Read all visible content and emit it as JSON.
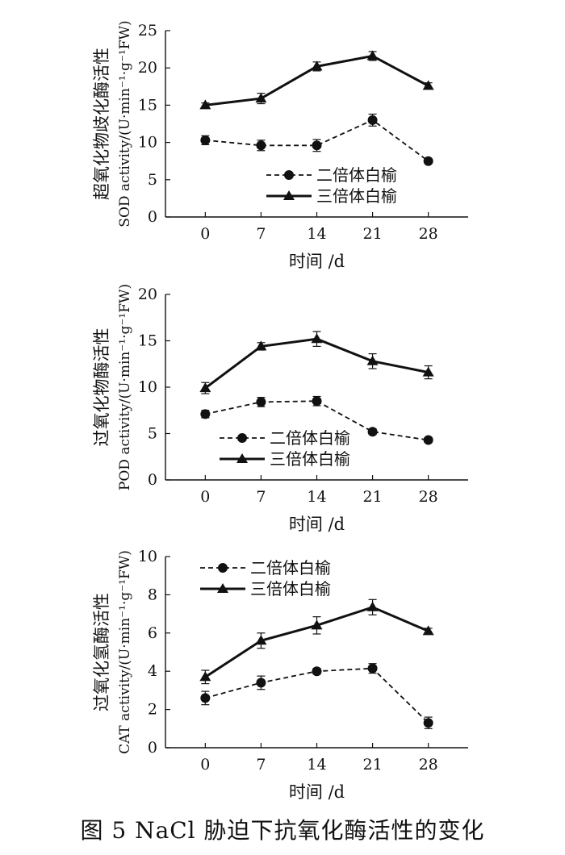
{
  "caption": "图 5   NaCl 胁迫下抗氧化酶活性的变化",
  "chart_data": [
    {
      "type": "line",
      "xlabel": "时间 /d",
      "ylabel_cn": "超氧化物歧化酶活性",
      "ylabel_en": "SOD activity/(U·min⁻¹·g⁻¹FW)",
      "x": [
        0,
        7,
        14,
        21,
        28
      ],
      "ylim": [
        0,
        25
      ],
      "yticks": [
        0,
        5,
        10,
        15,
        20,
        25
      ],
      "legend_position": "center-right",
      "series": [
        {
          "name": "二倍体白榆",
          "marker": "circle",
          "line": "dashed",
          "values": [
            10.3,
            9.6,
            9.6,
            13.0,
            7.5
          ],
          "errors": [
            0.6,
            0.7,
            0.8,
            0.8,
            0.3
          ]
        },
        {
          "name": "三倍体白榆",
          "marker": "triangle",
          "line": "solid",
          "values": [
            15.0,
            15.9,
            20.2,
            21.6,
            17.6
          ],
          "errors": [
            0.3,
            0.7,
            0.6,
            0.6,
            0.4
          ]
        }
      ]
    },
    {
      "type": "line",
      "xlabel": "时间 /d",
      "ylabel_cn": "过氧化物酶活性",
      "ylabel_en": "POD activity/(U·min⁻¹·g⁻¹FW)",
      "x": [
        0,
        7,
        14,
        21,
        28
      ],
      "ylim": [
        0,
        20
      ],
      "yticks": [
        0,
        5,
        10,
        15,
        20
      ],
      "legend_position": "bottom-center",
      "series": [
        {
          "name": "二倍体白榆",
          "marker": "circle",
          "line": "dashed",
          "values": [
            7.1,
            8.4,
            8.5,
            5.2,
            4.3
          ],
          "errors": [
            0.4,
            0.5,
            0.5,
            0.3,
            0.2
          ]
        },
        {
          "name": "三倍体白榆",
          "marker": "triangle",
          "line": "solid",
          "values": [
            9.9,
            14.4,
            15.2,
            12.8,
            11.6
          ],
          "errors": [
            0.6,
            0.4,
            0.8,
            0.8,
            0.7
          ]
        }
      ]
    },
    {
      "type": "line",
      "xlabel": "时间 /d",
      "ylabel_cn": "过氧化氢酶活性",
      "ylabel_en": "CAT activity/(U·min⁻¹·g⁻¹FW)",
      "x": [
        0,
        7,
        14,
        21,
        28
      ],
      "ylim": [
        0,
        10
      ],
      "yticks": [
        0,
        2,
        4,
        6,
        8,
        10
      ],
      "legend_position": "top-center",
      "series": [
        {
          "name": "二倍体白榆",
          "marker": "circle",
          "line": "dashed",
          "values": [
            2.6,
            3.4,
            4.0,
            4.15,
            1.3
          ],
          "errors": [
            0.35,
            0.35,
            0.15,
            0.25,
            0.3
          ]
        },
        {
          "name": "三倍体白榆",
          "marker": "triangle",
          "line": "solid",
          "values": [
            3.7,
            5.6,
            6.4,
            7.35,
            6.1
          ],
          "errors": [
            0.35,
            0.4,
            0.45,
            0.4,
            0.15
          ]
        }
      ]
    }
  ]
}
